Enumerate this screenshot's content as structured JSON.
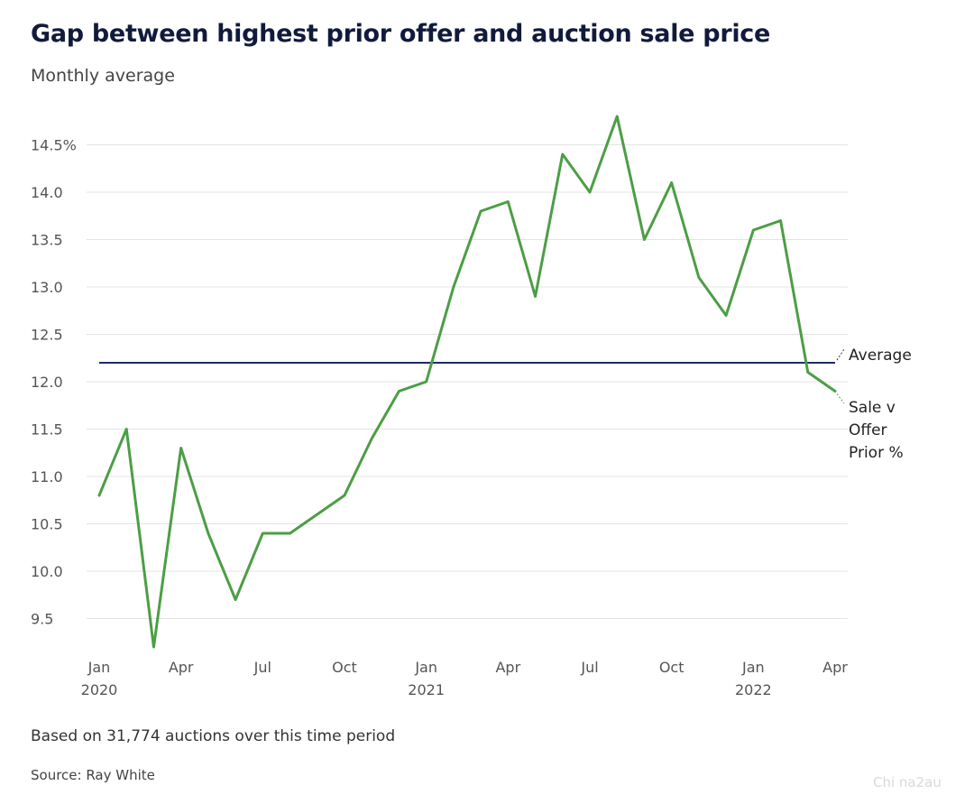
{
  "header": {
    "title": "Gap between highest prior offer and auction sale price",
    "subtitle": "Monthly average"
  },
  "footer": {
    "note": "Based on 31,774 auctions over this time period",
    "source": "Source: Ray White",
    "watermark": "Chi na2au"
  },
  "chart_data": {
    "type": "line",
    "title": "Gap between highest prior offer and auction sale price",
    "subtitle": "Monthly average",
    "xlabel": "",
    "ylabel": "",
    "ylim": [
      9.2,
      14.8
    ],
    "grid": true,
    "x": [
      "2020-01",
      "2020-02",
      "2020-03",
      "2020-04",
      "2020-05",
      "2020-06",
      "2020-07",
      "2020-08",
      "2020-09",
      "2020-10",
      "2020-11",
      "2020-12",
      "2021-01",
      "2021-02",
      "2021-03",
      "2021-04",
      "2021-05",
      "2021-06",
      "2021-07",
      "2021-08",
      "2021-09",
      "2021-10",
      "2021-11",
      "2021-12",
      "2022-01",
      "2022-02",
      "2022-03",
      "2022-04"
    ],
    "y_ticks": [
      {
        "value": 14.5,
        "label": "14.5%"
      },
      {
        "value": 14.0,
        "label": "14.0"
      },
      {
        "value": 13.5,
        "label": "13.5"
      },
      {
        "value": 13.0,
        "label": "13.0"
      },
      {
        "value": 12.5,
        "label": "12.5"
      },
      {
        "value": 12.0,
        "label": "12.0"
      },
      {
        "value": 11.5,
        "label": "11.5"
      },
      {
        "value": 11.0,
        "label": "11.0"
      },
      {
        "value": 10.5,
        "label": "10.5"
      },
      {
        "value": 10.0,
        "label": "10.0"
      },
      {
        "value": 9.5,
        "label": "9.5"
      }
    ],
    "x_ticks": [
      {
        "index": 0,
        "label": "Jan",
        "year": "2020"
      },
      {
        "index": 3,
        "label": "Apr",
        "year": ""
      },
      {
        "index": 6,
        "label": "Jul",
        "year": ""
      },
      {
        "index": 9,
        "label": "Oct",
        "year": ""
      },
      {
        "index": 12,
        "label": "Jan",
        "year": "2021"
      },
      {
        "index": 15,
        "label": "Apr",
        "year": ""
      },
      {
        "index": 18,
        "label": "Jul",
        "year": ""
      },
      {
        "index": 21,
        "label": "Oct",
        "year": ""
      },
      {
        "index": 24,
        "label": "Jan",
        "year": "2022"
      },
      {
        "index": 27,
        "label": "Apr",
        "year": ""
      }
    ],
    "series": [
      {
        "name": "Sale v Offer Prior %",
        "label_lines": [
          "Sale v",
          "Offer",
          "Prior %"
        ],
        "color": "#4c9e45",
        "values": [
          10.8,
          11.5,
          9.2,
          11.3,
          10.4,
          9.7,
          10.4,
          10.4,
          10.6,
          10.8,
          11.4,
          11.9,
          12.0,
          13.0,
          13.8,
          13.9,
          12.9,
          14.4,
          14.0,
          14.8,
          13.5,
          14.1,
          13.1,
          12.7,
          13.6,
          13.7,
          12.1,
          11.9
        ]
      },
      {
        "name": "Average",
        "label_lines": [
          "Average"
        ],
        "color": "#1f2a6b",
        "constant": 12.2
      }
    ]
  }
}
